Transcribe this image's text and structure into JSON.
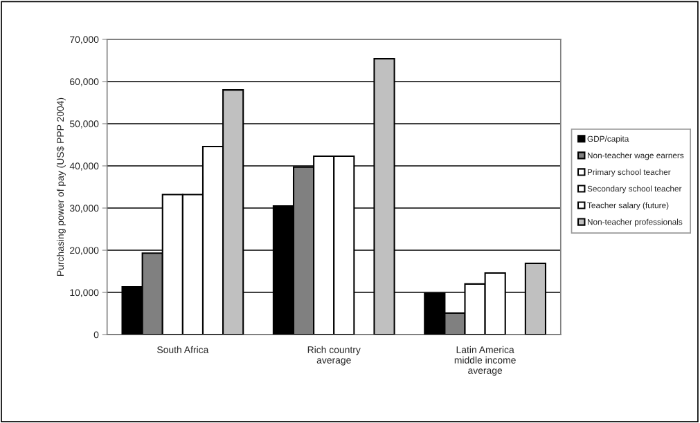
{
  "chart_data": {
    "type": "bar",
    "ylabel": "Purchasing power of pay (US$ PPP 2004)",
    "categories": [
      "South Africa",
      "Rich country\naverage",
      "Latin America\nmiddle income\naverage"
    ],
    "series": [
      {
        "name": "GDP/capita",
        "color": "#000000",
        "values": [
          11300,
          30500,
          9800
        ]
      },
      {
        "name": "Non-teacher wage earners",
        "color": "#808080",
        "values": [
          19300,
          39700,
          5100
        ]
      },
      {
        "name": "Primary school teacher",
        "color": "#ffffff",
        "values": [
          33200,
          42300,
          12000
        ]
      },
      {
        "name": "Secondary school teacher",
        "color": "#ffffff",
        "values": [
          33200,
          42300,
          14600
        ]
      },
      {
        "name": "Teacher salary (future)",
        "color": "#ffffff",
        "values": [
          44600,
          null,
          null
        ]
      },
      {
        "name": "Non-teacher professionals",
        "color": "#c0c0c0",
        "values": [
          58000,
          65400,
          16900
        ]
      }
    ],
    "ylim": [
      0,
      70000
    ],
    "yticks": [
      {
        "value": 0,
        "label": "0"
      },
      {
        "value": 10000,
        "label": "10,000"
      },
      {
        "value": 20000,
        "label": "20,000"
      },
      {
        "value": 30000,
        "label": "30,000"
      },
      {
        "value": 40000,
        "label": "40,000"
      },
      {
        "value": 50000,
        "label": "50,000"
      },
      {
        "value": 60000,
        "label": "60,000"
      },
      {
        "value": 70000,
        "label": "70,000"
      }
    ],
    "grid": "y",
    "legend": "right"
  }
}
